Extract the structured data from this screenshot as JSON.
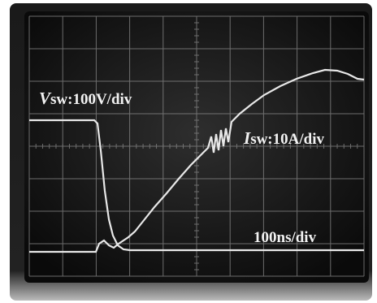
{
  "traces": [
    {
      "symbol": "V",
      "text": "sw:100V/div"
    },
    {
      "symbol": "I",
      "text": "sw:10A/div"
    }
  ],
  "timebase": "100ns/div"
}
